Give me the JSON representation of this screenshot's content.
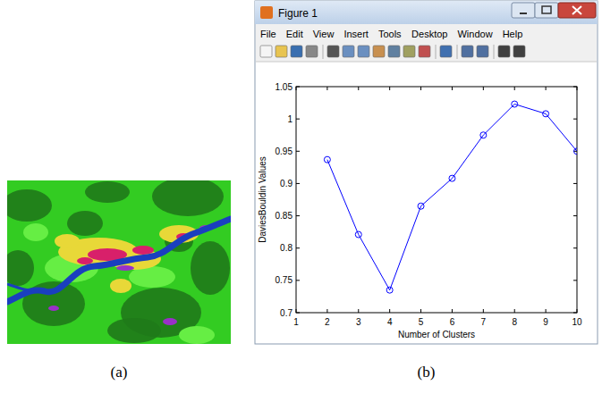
{
  "chart_data": {
    "type": "line",
    "x_label": "Number of Clusters",
    "y_label": "DaviesBouldin Values",
    "x": [
      2,
      3,
      4,
      5,
      6,
      7,
      8,
      9,
      10
    ],
    "values": [
      0.937,
      0.821,
      0.735,
      0.865,
      0.908,
      0.975,
      1.023,
      1.008,
      0.95
    ],
    "color": "#0000ff",
    "marker": "circle",
    "line_style": "solid",
    "grid": false,
    "xlim": [
      1,
      10
    ],
    "xticks": [
      1,
      2,
      3,
      4,
      5,
      6,
      7,
      8,
      9,
      10
    ],
    "ylim": [
      0.7,
      1.05
    ],
    "yticks": [
      0.7,
      0.75,
      0.8,
      0.85,
      0.9,
      0.95,
      1,
      1.05
    ]
  },
  "window": {
    "title": "Figure 1",
    "menu": [
      "File",
      "Edit",
      "View",
      "Insert",
      "Tools",
      "Desktop",
      "Window",
      "Help"
    ]
  },
  "captions": [
    "(a)",
    "(b)"
  ]
}
